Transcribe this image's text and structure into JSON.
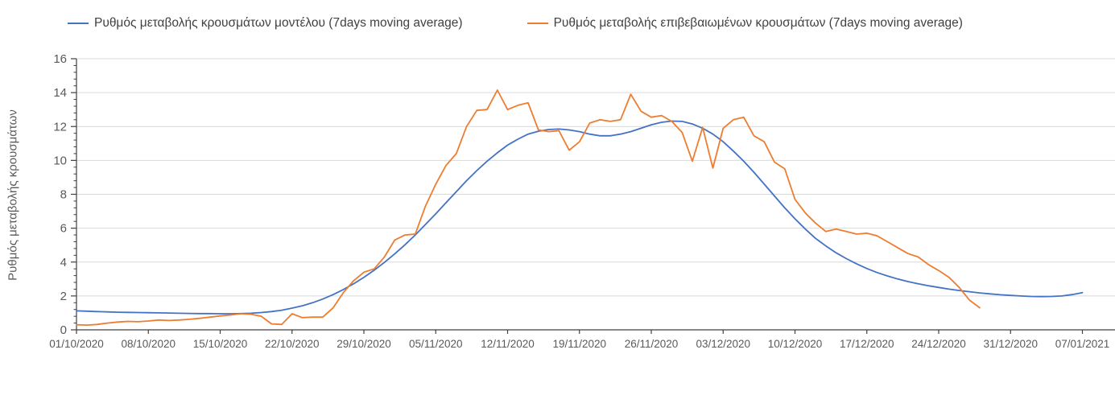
{
  "chart_data": {
    "type": "line",
    "title": "",
    "xlabel": "",
    "ylabel": "Ρυθμός μεταβολής κρουσμάτων",
    "ylim": [
      0,
      16
    ],
    "y_major_step": 2,
    "y_minor_step": 0.4,
    "y_tick_labels": [
      "0",
      "2",
      "4",
      "6",
      "8",
      "10",
      "12",
      "14",
      "16"
    ],
    "grid": "horizontal-light",
    "legend_position": "top",
    "x_start_date": "01/10/2020",
    "x_days_per_tick": 7,
    "x_tick_labels": [
      "01/10/2020",
      "08/10/2020",
      "15/10/2020",
      "22/10/2020",
      "29/10/2020",
      "05/11/2020",
      "12/11/2020",
      "19/11/2020",
      "26/11/2020",
      "03/12/2020",
      "10/12/2020",
      "17/12/2020",
      "24/12/2020",
      "31/12/2020",
      "07/01/2021"
    ],
    "series": [
      {
        "name": "Ρυθμός μεταβολής κρουσμάτων μοντέλου (7days moving average)",
        "color": "#4472C4",
        "start_date": "01/10/2020",
        "values": [
          1.12,
          1.1,
          1.08,
          1.06,
          1.04,
          1.03,
          1.02,
          1.01,
          1.0,
          0.99,
          0.98,
          0.97,
          0.96,
          0.96,
          0.95,
          0.95,
          0.96,
          0.98,
          1.02,
          1.08,
          1.16,
          1.28,
          1.42,
          1.6,
          1.82,
          2.08,
          2.38,
          2.72,
          3.1,
          3.52,
          3.98,
          4.48,
          5.02,
          5.6,
          6.22,
          6.85,
          7.5,
          8.15,
          8.8,
          9.4,
          9.95,
          10.45,
          10.9,
          11.25,
          11.55,
          11.72,
          11.82,
          11.85,
          11.8,
          11.7,
          11.55,
          11.45,
          11.45,
          11.55,
          11.7,
          11.9,
          12.1,
          12.25,
          12.32,
          12.3,
          12.15,
          11.9,
          11.55,
          11.1,
          10.55,
          9.95,
          9.3,
          8.6,
          7.9,
          7.2,
          6.55,
          5.95,
          5.4,
          4.95,
          4.55,
          4.2,
          3.9,
          3.62,
          3.38,
          3.18,
          3.0,
          2.85,
          2.72,
          2.6,
          2.5,
          2.4,
          2.32,
          2.25,
          2.18,
          2.12,
          2.07,
          2.03,
          2.0,
          1.97,
          1.96,
          1.97,
          2.0,
          2.08,
          2.2
        ]
      },
      {
        "name": "Ρυθμός μεταβολής επιβεβαιωμένων κρουσμάτων (7days moving average)",
        "color": "#ED7D31",
        "start_date": "01/10/2020",
        "values": [
          0.3,
          0.28,
          0.32,
          0.4,
          0.46,
          0.5,
          0.48,
          0.52,
          0.58,
          0.55,
          0.58,
          0.62,
          0.68,
          0.75,
          0.82,
          0.88,
          0.95,
          0.92,
          0.8,
          0.35,
          0.32,
          0.95,
          0.72,
          0.75,
          0.75,
          1.3,
          2.2,
          2.9,
          3.4,
          3.6,
          4.3,
          5.3,
          5.6,
          5.65,
          7.3,
          8.6,
          9.7,
          10.4,
          12.0,
          12.95,
          13.0,
          14.15,
          13.0,
          13.25,
          13.4,
          11.8,
          11.7,
          11.75,
          10.6,
          11.1,
          12.2,
          12.4,
          12.3,
          12.4,
          13.9,
          12.9,
          12.55,
          12.65,
          12.3,
          11.65,
          9.95,
          11.95,
          9.55,
          11.9,
          12.4,
          12.55,
          11.45,
          11.1,
          9.9,
          9.5,
          7.7,
          6.9,
          6.3,
          5.8,
          5.95,
          5.8,
          5.65,
          5.7,
          5.55,
          5.2,
          4.85,
          4.5,
          4.3,
          3.85,
          3.5,
          3.1,
          2.5,
          1.75,
          1.3
        ]
      }
    ],
    "colors": {
      "model_line": "#4472C4",
      "confirmed_line": "#ED7D31",
      "gridline": "#D9D9D9",
      "axis": "#404040",
      "tick_text": "#595959",
      "legend_text": "#404040",
      "background": "#FFFFFF"
    }
  }
}
